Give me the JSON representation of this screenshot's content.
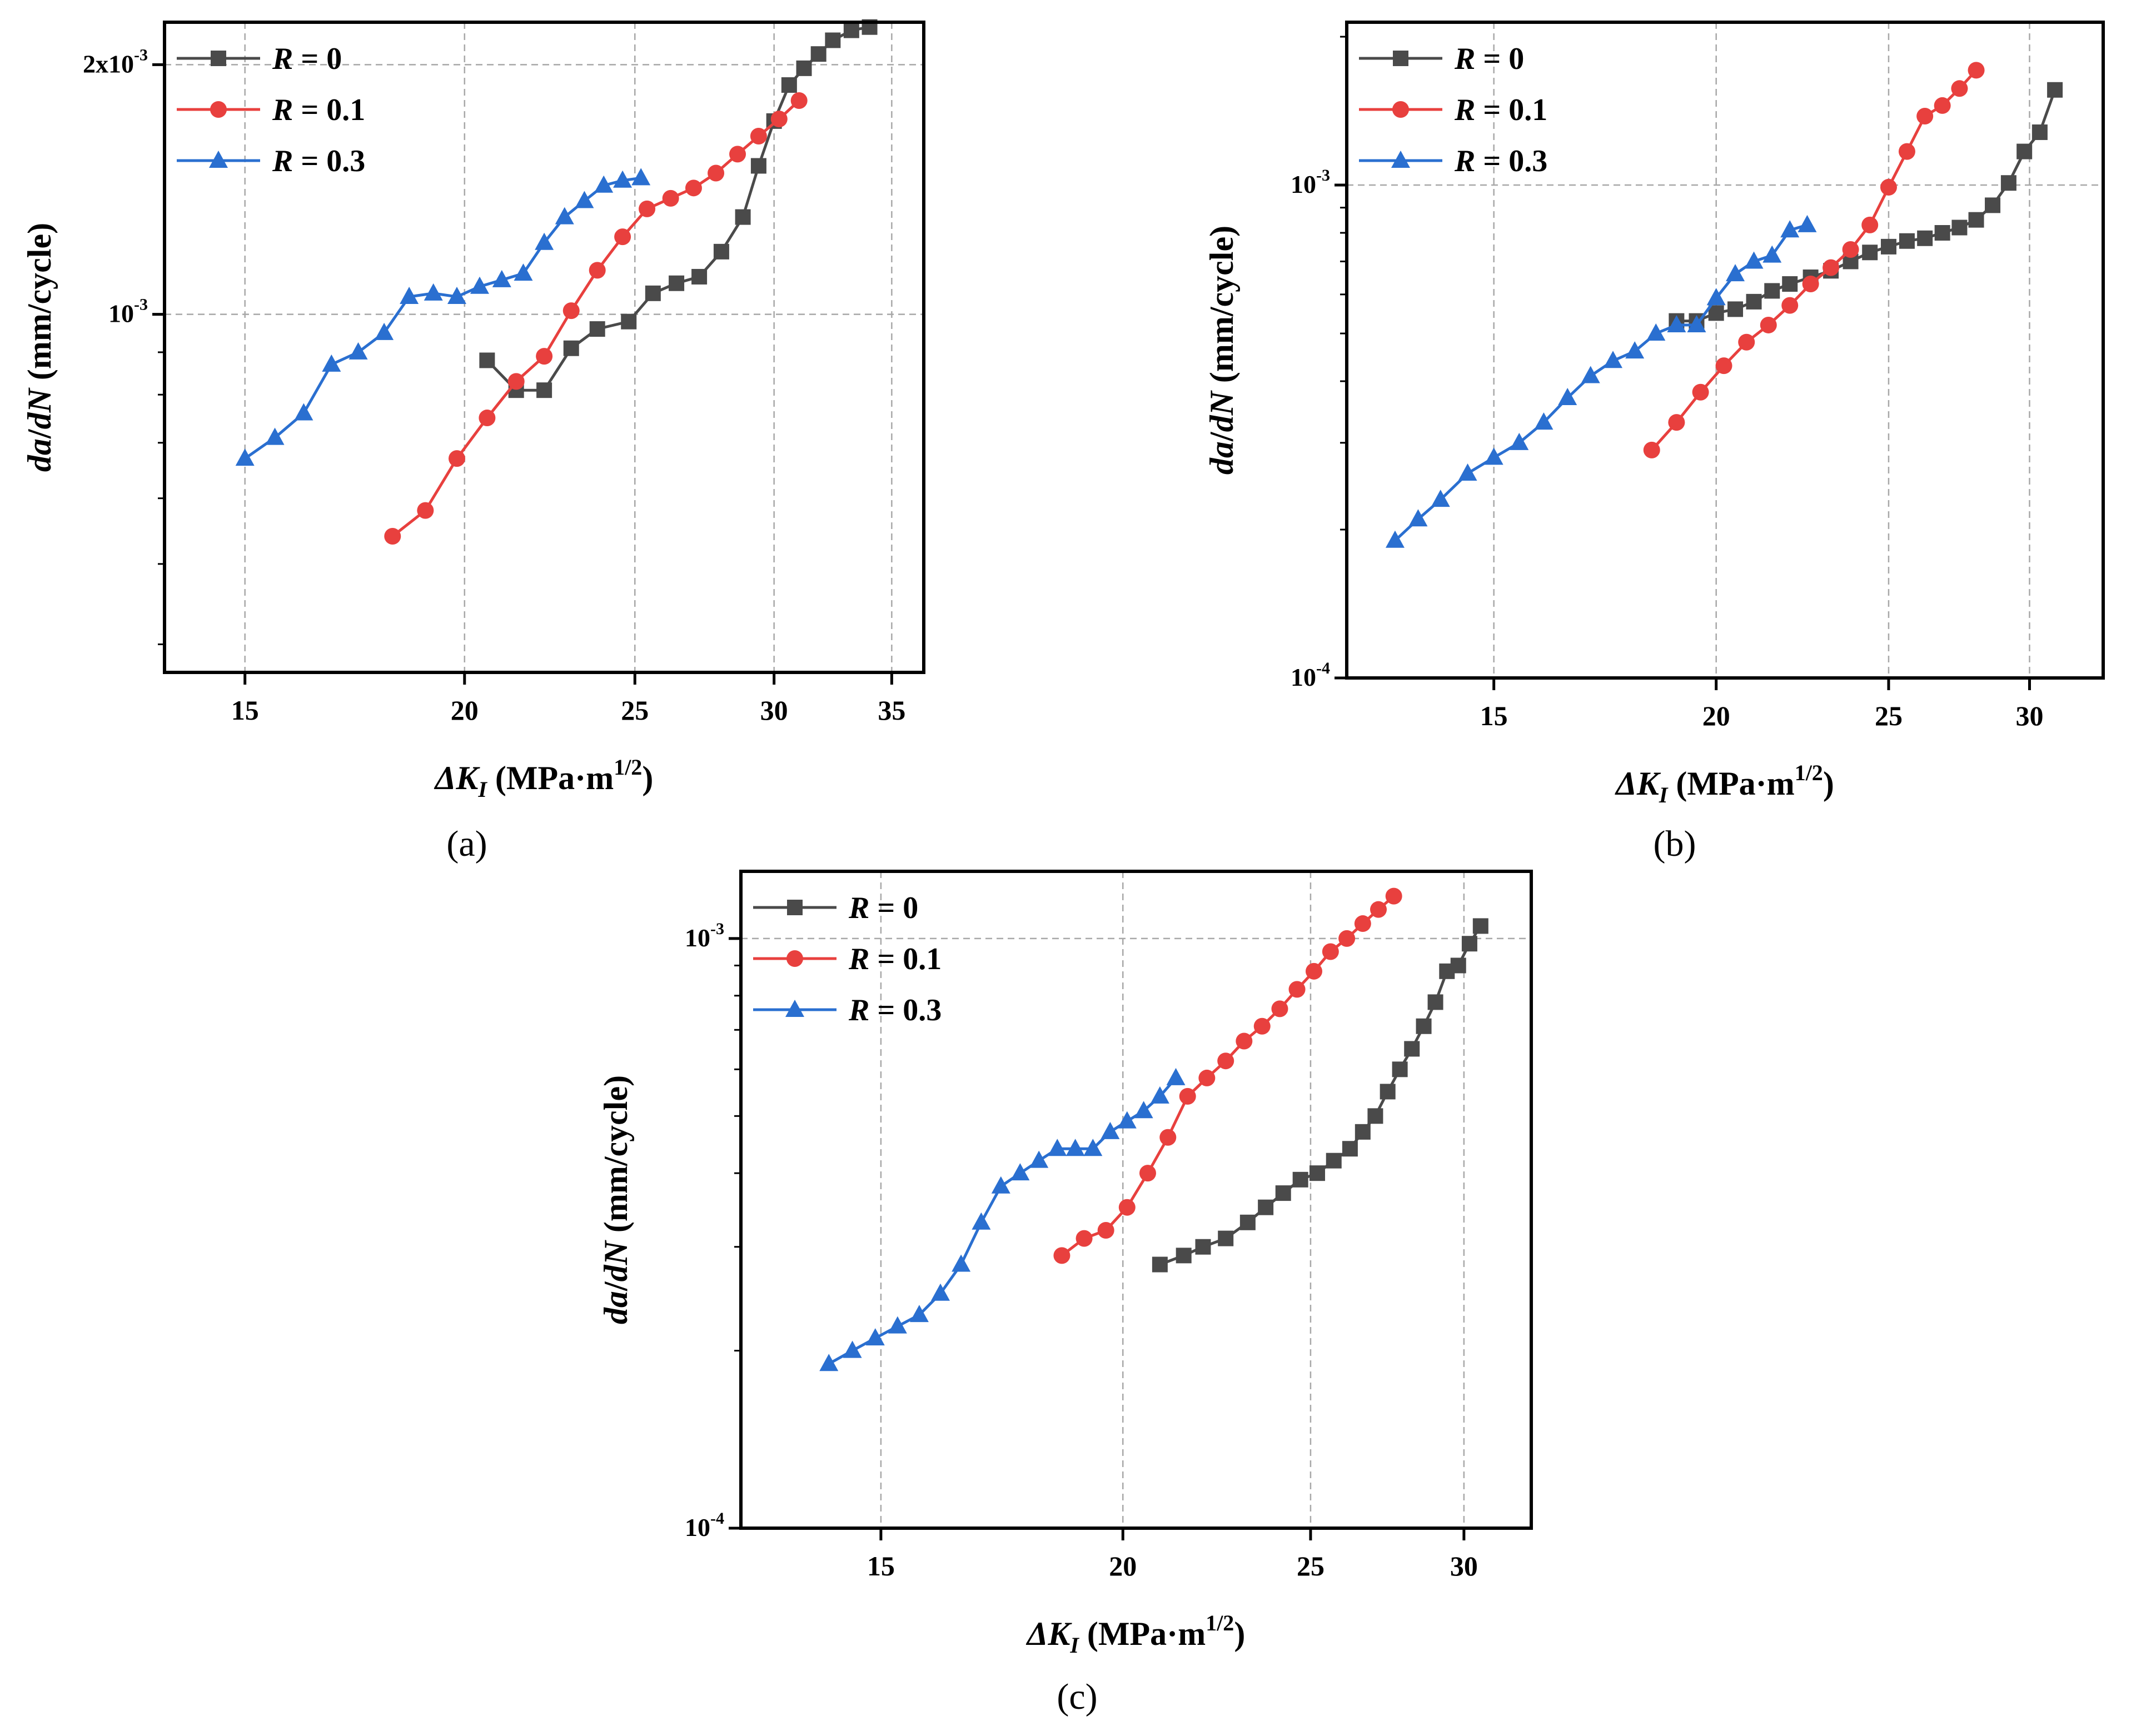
{
  "figure": {
    "xlabel_prefix": "ΔK",
    "xlabel_sub": "I",
    "xlabel_units": " (MPa·m",
    "xlabel_sup": "1/2",
    "xlabel_close": ")",
    "ylabel_da": "da",
    "ylabel_slash": "/",
    "ylabel_dn": "dN",
    "ylabel_units": " (mm/cycle)",
    "legend_R": "R",
    "colors": {
      "R0": "#4a4a4a",
      "R01": "#e8403e",
      "R03": "#2a6fd0"
    },
    "legend_values": {
      "R0": " = 0",
      "R01": " = 0.1",
      "R03": " = 0.3"
    }
  },
  "chart_data": [
    {
      "id": "a",
      "panel_label": "(a)",
      "type": "line",
      "xscale": "log",
      "yscale": "log",
      "xlim": [
        13.5,
        36.5
      ],
      "ylim": [
        0.00037,
        0.00225
      ],
      "xticks": [
        15,
        20,
        25,
        30,
        35
      ],
      "xtick_labels": [
        "15",
        "20",
        "25",
        "30",
        "35"
      ],
      "yticks": [
        0.001,
        0.002
      ],
      "ytick_labels": [
        {
          "base": "10",
          "exp": "-3"
        },
        {
          "base": "2x10",
          "exp": "-3"
        }
      ],
      "legend_position": "top-left",
      "series": [
        {
          "name": "R = 0",
          "key": "R0",
          "marker": "square",
          "x": [
            20.6,
            21.4,
            22.2,
            23.0,
            23.8,
            24.8,
            25.6,
            26.4,
            27.2,
            28.0,
            28.8,
            29.4,
            30.0,
            30.6,
            31.2,
            31.8,
            32.4,
            33.2,
            34.0
          ],
          "y": [
            0.00088,
            0.00081,
            0.00081,
            0.00091,
            0.00096,
            0.00098,
            0.00106,
            0.00109,
            0.00111,
            0.00119,
            0.00131,
            0.00151,
            0.00171,
            0.00189,
            0.00198,
            0.00206,
            0.00214,
            0.0022,
            0.00222
          ]
        },
        {
          "name": "R = 0.1",
          "key": "R01",
          "marker": "circle",
          "x": [
            18.2,
            19.0,
            19.8,
            20.6,
            21.4,
            22.2,
            23.0,
            23.8,
            24.6,
            25.4,
            26.2,
            27.0,
            27.8,
            28.6,
            29.4,
            30.2,
            31.0
          ],
          "y": [
            0.00054,
            0.00058,
            0.00067,
            0.00075,
            0.00083,
            0.00089,
            0.00101,
            0.00113,
            0.00124,
            0.00134,
            0.00138,
            0.00142,
            0.00148,
            0.00156,
            0.00164,
            0.00172,
            0.00181
          ]
        },
        {
          "name": "R = 0.3",
          "key": "R03",
          "marker": "triangle",
          "x": [
            15.0,
            15.6,
            16.2,
            16.8,
            17.4,
            18.0,
            18.6,
            19.2,
            19.8,
            20.4,
            21.0,
            21.6,
            22.2,
            22.8,
            23.4,
            24.0,
            24.6,
            25.2
          ],
          "y": [
            0.00067,
            0.00071,
            0.00076,
            0.00087,
            0.0009,
            0.00095,
            0.00105,
            0.00106,
            0.00105,
            0.00108,
            0.0011,
            0.00112,
            0.00122,
            0.00131,
            0.00137,
            0.00143,
            0.00145,
            0.00146
          ]
        }
      ]
    },
    {
      "id": "b",
      "panel_label": "(b)",
      "type": "line",
      "xscale": "log",
      "yscale": "log",
      "xlim": [
        12.4,
        33.0
      ],
      "ylim": [
        0.0001,
        0.00214
      ],
      "xticks": [
        15,
        20,
        25,
        30
      ],
      "xtick_labels": [
        "15",
        "20",
        "25",
        "30"
      ],
      "yticks": [
        0.0001,
        0.001
      ],
      "ytick_labels": [
        {
          "base": "10",
          "exp": "-4"
        },
        {
          "base": "10",
          "exp": "-3"
        }
      ],
      "legend_position": "top-left",
      "series": [
        {
          "name": "R = 0",
          "key": "R0",
          "marker": "square",
          "x": [
            19.0,
            19.5,
            20.0,
            20.5,
            21.0,
            21.5,
            22.0,
            22.6,
            23.2,
            23.8,
            24.4,
            25.0,
            25.6,
            26.2,
            26.8,
            27.4,
            28.0,
            28.6,
            29.2,
            29.8,
            30.4,
            31.0
          ],
          "y": [
            0.00053,
            0.00053,
            0.00055,
            0.00056,
            0.00058,
            0.00061,
            0.00063,
            0.00065,
            0.00067,
            0.0007,
            0.00073,
            0.00075,
            0.00077,
            0.00078,
            0.0008,
            0.00082,
            0.00085,
            0.00091,
            0.00101,
            0.00117,
            0.00128,
            0.00156
          ]
        },
        {
          "name": "R = 0.1",
          "key": "R01",
          "marker": "circle",
          "x": [
            18.4,
            19.0,
            19.6,
            20.2,
            20.8,
            21.4,
            22.0,
            22.6,
            23.2,
            23.8,
            24.4,
            25.0,
            25.6,
            26.2,
            26.8,
            27.4,
            28.0
          ],
          "y": [
            0.00029,
            0.00033,
            0.00038,
            0.00043,
            0.00048,
            0.00052,
            0.00057,
            0.00063,
            0.00068,
            0.00074,
            0.00083,
            0.00099,
            0.00117,
            0.00138,
            0.00145,
            0.00157,
            0.00171
          ]
        },
        {
          "name": "R = 0.3",
          "key": "R03",
          "marker": "triangle",
          "x": [
            13.2,
            13.6,
            14.0,
            14.5,
            15.0,
            15.5,
            16.0,
            16.5,
            17.0,
            17.5,
            18.0,
            18.5,
            19.0,
            19.5,
            20.0,
            20.5,
            21.0,
            21.5,
            22.0,
            22.5
          ],
          "y": [
            0.00019,
            0.00021,
            0.00023,
            0.00026,
            0.00028,
            0.0003,
            0.00033,
            0.00037,
            0.00041,
            0.00044,
            0.00046,
            0.0005,
            0.00052,
            0.00052,
            0.00059,
            0.00066,
            0.0007,
            0.00072,
            0.00081,
            0.00083
          ]
        }
      ]
    },
    {
      "id": "c",
      "panel_label": "(c)",
      "type": "line",
      "xscale": "log",
      "yscale": "log",
      "xlim": [
        12.7,
        32.5
      ],
      "ylim": [
        0.0001,
        0.0013
      ],
      "xticks": [
        15,
        20,
        25,
        30
      ],
      "xtick_labels": [
        "15",
        "20",
        "25",
        "30"
      ],
      "yticks": [
        0.0001,
        0.001
      ],
      "ytick_labels": [
        {
          "base": "10",
          "exp": "-4"
        },
        {
          "base": "10",
          "exp": "-3"
        }
      ],
      "legend_position": "top-left",
      "series": [
        {
          "name": "R = 0",
          "key": "R0",
          "marker": "square",
          "x": [
            20.9,
            21.5,
            22.0,
            22.6,
            23.2,
            23.7,
            24.2,
            24.7,
            25.2,
            25.7,
            26.2,
            26.6,
            27.0,
            27.4,
            27.8,
            28.2,
            28.6,
            29.0,
            29.4,
            29.8,
            30.2,
            30.6
          ],
          "y": [
            0.00028,
            0.00029,
            0.0003,
            0.00031,
            0.00033,
            0.00035,
            0.00037,
            0.00039,
            0.0004,
            0.00042,
            0.00044,
            0.00047,
            0.0005,
            0.00055,
            0.0006,
            0.00065,
            0.00071,
            0.00078,
            0.00088,
            0.0009,
            0.00098,
            0.00105
          ]
        },
        {
          "name": "R = 0.1",
          "key": "R01",
          "marker": "circle",
          "x": [
            18.6,
            19.1,
            19.6,
            20.1,
            20.6,
            21.1,
            21.6,
            22.1,
            22.6,
            23.1,
            23.6,
            24.1,
            24.6,
            25.1,
            25.6,
            26.1,
            26.6,
            27.1,
            27.6
          ],
          "y": [
            0.00029,
            0.00031,
            0.00032,
            0.00035,
            0.0004,
            0.00046,
            0.00054,
            0.00058,
            0.00062,
            0.00067,
            0.00071,
            0.00076,
            0.00082,
            0.00088,
            0.00095,
            0.001,
            0.00106,
            0.00112,
            0.00118
          ]
        },
        {
          "name": "R = 0.3",
          "key": "R03",
          "marker": "triangle",
          "x": [
            14.1,
            14.5,
            14.9,
            15.3,
            15.7,
            16.1,
            16.5,
            16.9,
            17.3,
            17.7,
            18.1,
            18.5,
            18.9,
            19.3,
            19.7,
            20.1,
            20.5,
            20.9,
            21.3
          ],
          "y": [
            0.00019,
            0.0002,
            0.00021,
            0.00022,
            0.00023,
            0.00025,
            0.00028,
            0.00033,
            0.00038,
            0.0004,
            0.00042,
            0.00044,
            0.00044,
            0.00044,
            0.00047,
            0.00049,
            0.00051,
            0.00054,
            0.00058
          ]
        }
      ]
    }
  ]
}
